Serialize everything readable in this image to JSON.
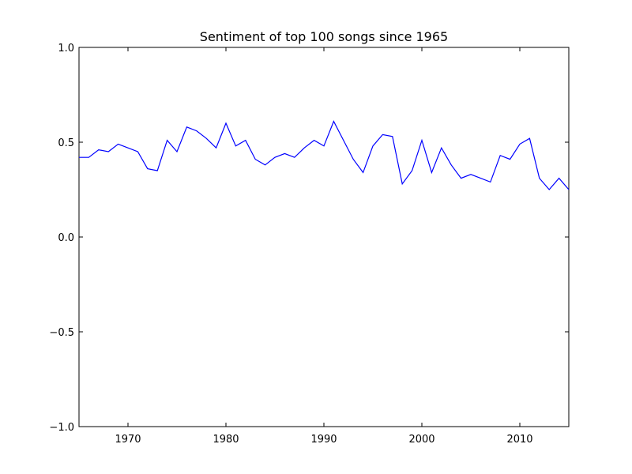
{
  "chart_data": {
    "type": "line",
    "title": "Sentiment of top 100 songs since 1965",
    "xlabel": "",
    "ylabel": "",
    "xlim": [
      1965,
      2015
    ],
    "ylim": [
      -1.0,
      1.0
    ],
    "grid": false,
    "x_ticks": [
      1970,
      1980,
      1990,
      2000,
      2010
    ],
    "x_tick_labels": [
      "1970",
      "1980",
      "1990",
      "2000",
      "2010"
    ],
    "y_ticks": [
      -1.0,
      -0.5,
      0.0,
      0.5,
      1.0
    ],
    "y_tick_labels": [
      "−1.0",
      "−0.5",
      "0.0",
      "0.5",
      "1.0"
    ],
    "series": [
      {
        "color": "#0000ff",
        "x": [
          1965,
          1966,
          1967,
          1968,
          1969,
          1970,
          1971,
          1972,
          1973,
          1974,
          1975,
          1976,
          1977,
          1978,
          1979,
          1980,
          1981,
          1982,
          1983,
          1984,
          1985,
          1986,
          1987,
          1988,
          1989,
          1990,
          1991,
          1992,
          1993,
          1994,
          1995,
          1996,
          1997,
          1998,
          1999,
          2000,
          2001,
          2002,
          2003,
          2004,
          2005,
          2006,
          2007,
          2008,
          2009,
          2010,
          2011,
          2012,
          2013,
          2014,
          2015
        ],
        "y": [
          0.42,
          0.42,
          0.46,
          0.45,
          0.49,
          0.47,
          0.45,
          0.36,
          0.35,
          0.51,
          0.45,
          0.58,
          0.56,
          0.52,
          0.47,
          0.6,
          0.48,
          0.51,
          0.41,
          0.38,
          0.42,
          0.44,
          0.42,
          0.47,
          0.51,
          0.48,
          0.61,
          0.51,
          0.41,
          0.34,
          0.48,
          0.54,
          0.53,
          0.28,
          0.35,
          0.51,
          0.34,
          0.47,
          0.38,
          0.31,
          0.33,
          0.31,
          0.29,
          0.43,
          0.41,
          0.49,
          0.52,
          0.31,
          0.25,
          0.31,
          0.25
        ]
      }
    ]
  }
}
